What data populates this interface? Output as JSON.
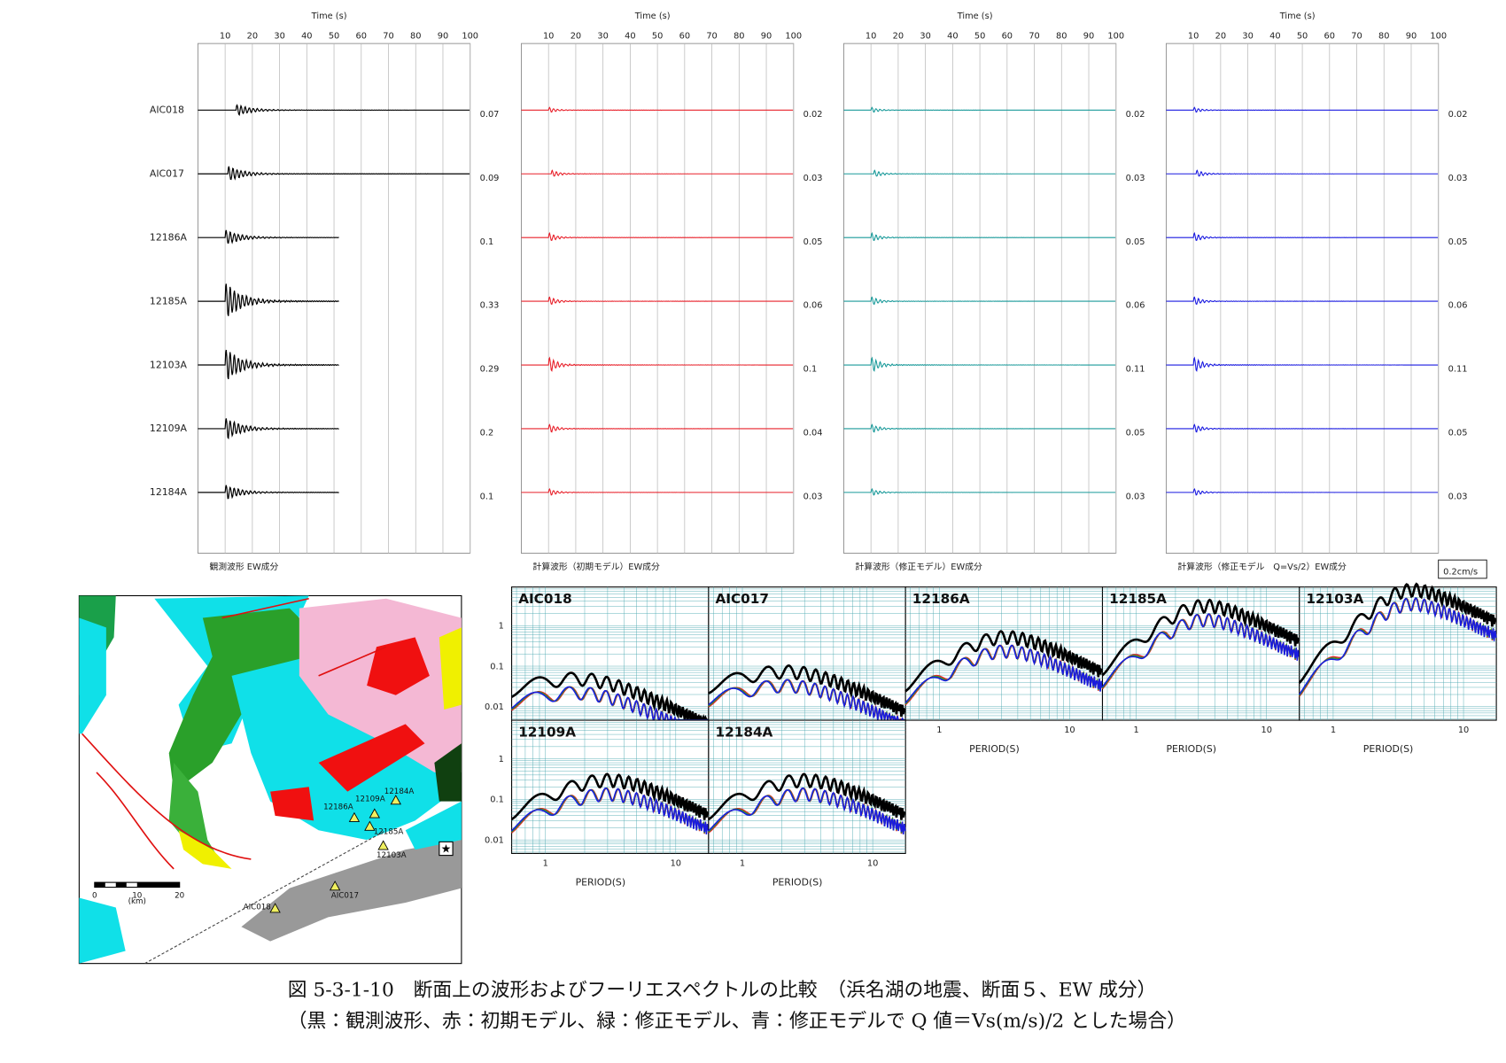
{
  "waveforms": {
    "xlim": [
      0,
      100
    ],
    "stations": [
      "AIC018",
      "AIC017",
      "12186A",
      "12185A",
      "12103A",
      "12109A",
      "12184A"
    ],
    "panels": [
      {
        "axis_title": "Time (s)",
        "xticks": [
          10,
          20,
          30,
          40,
          50,
          60,
          70,
          80,
          90,
          100
        ],
        "caption": "観測波形 EW成分",
        "color": "#000000",
        "amplitudes": [
          0.07,
          0.09,
          0.1,
          0.33,
          0.29,
          0.2,
          0.1
        ]
      },
      {
        "axis_title": "Time (s)",
        "xticks": [
          10,
          20,
          30,
          40,
          50,
          60,
          70,
          80,
          90,
          100
        ],
        "caption": "計算波形（初期モデル）EW成分",
        "color": "#e8202a",
        "amplitudes": [
          0.02,
          0.03,
          0.05,
          0.06,
          0.1,
          0.04,
          0.03
        ]
      },
      {
        "axis_title": "Time (s)",
        "xticks": [
          10,
          20,
          30,
          40,
          50,
          60,
          70,
          80,
          90,
          100
        ],
        "caption": "計算波形（修正モデル）EW成分",
        "color": "#1a9a9a",
        "amplitudes": [
          0.02,
          0.03,
          0.05,
          0.06,
          0.11,
          0.05,
          0.03
        ]
      },
      {
        "axis_title": "Time (s)",
        "xticks": [
          10,
          20,
          30,
          40,
          50,
          60,
          70,
          80,
          90,
          100
        ],
        "caption": "計算波形（修正モデル　Q=Vs/2）EW成分",
        "color": "#1a1ae0",
        "amplitudes": [
          0.02,
          0.03,
          0.05,
          0.06,
          0.11,
          0.05,
          0.03
        ]
      }
    ],
    "scale_label": "0.2cm/s"
  },
  "spectra": {
    "panels": [
      "AIC018",
      "AIC017",
      "12186A",
      "12185A",
      "12103A",
      "12109A",
      "12184A"
    ],
    "yticks": [
      1,
      0.1,
      0.01
    ],
    "xticks": [
      1,
      10
    ],
    "xlabel": "PERIOD(S)",
    "colors": [
      "#000000",
      "#e8202a",
      "#2a9a2a",
      "#1a1ae0"
    ]
  },
  "map": {
    "labels": [
      "12186A",
      "12109A",
      "12184A",
      "12185A",
      "12103A",
      "AIC017",
      "AIC018"
    ],
    "scale_ticks": [
      0,
      10,
      20
    ],
    "scale_unit": "(km)"
  },
  "caption": [
    "図 5-3-1-10　断面上の波形およびフーリエスペクトルの比較　（浜名湖の地震、断面５、EW 成分）",
    "（黒：観測波形、赤：初期モデル、緑：修正モデル、青：修正モデルで Q 値＝Vs(m/s)/2 とした場合）"
  ]
}
